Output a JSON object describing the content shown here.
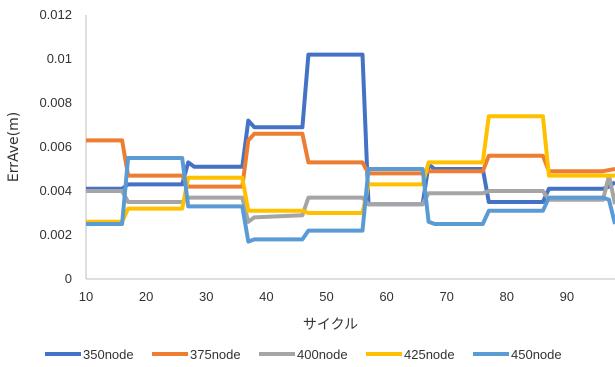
{
  "chart_data": {
    "type": "line",
    "title": "",
    "xlabel": "サイクル",
    "ylabel": "ErrAve(m)",
    "xlim": [
      10,
      98
    ],
    "ylim": [
      0,
      0.012
    ],
    "x_ticks": [
      10,
      20,
      30,
      40,
      50,
      60,
      70,
      80,
      90
    ],
    "x_tick_labels": [
      "10",
      "20",
      "30",
      "40",
      "50",
      "60",
      "70",
      "80",
      "90"
    ],
    "y_ticks": [
      0,
      0.002,
      0.004,
      0.006,
      0.008,
      0.01,
      0.012
    ],
    "y_tick_labels": [
      "0",
      "0.002",
      "0.004",
      "0.006",
      "0.008",
      "0.01",
      "0.012"
    ],
    "grid": false,
    "legend_position": "bottom",
    "series": [
      {
        "name": "350node",
        "color": "#4472C4",
        "points": [
          [
            10,
            0.0041
          ],
          [
            16,
            0.0041
          ],
          [
            17,
            0.0043
          ],
          [
            26,
            0.0043
          ],
          [
            27,
            0.0053
          ],
          [
            28,
            0.0051
          ],
          [
            36,
            0.0051
          ],
          [
            37,
            0.0072
          ],
          [
            38,
            0.0069
          ],
          [
            46,
            0.0069
          ],
          [
            47,
            0.0102
          ],
          [
            56,
            0.0102
          ],
          [
            57,
            0.0034
          ],
          [
            66,
            0.0034
          ],
          [
            67,
            0.0052
          ],
          [
            68,
            0.005
          ],
          [
            76,
            0.005
          ],
          [
            77,
            0.0035
          ],
          [
            86,
            0.0035
          ],
          [
            87,
            0.0041
          ],
          [
            96,
            0.0041
          ],
          [
            97,
            0.0042
          ],
          [
            98,
            0.0044
          ]
        ]
      },
      {
        "name": "375node",
        "color": "#ED7D31",
        "points": [
          [
            10,
            0.0063
          ],
          [
            16,
            0.0063
          ],
          [
            17,
            0.0047
          ],
          [
            26,
            0.0047
          ],
          [
            27,
            0.0042
          ],
          [
            36,
            0.0042
          ],
          [
            37,
            0.0063
          ],
          [
            38,
            0.0066
          ],
          [
            46,
            0.0066
          ],
          [
            47,
            0.0053
          ],
          [
            56,
            0.0053
          ],
          [
            57,
            0.0048
          ],
          [
            66,
            0.0048
          ],
          [
            67,
            0.0049
          ],
          [
            76,
            0.0049
          ],
          [
            77,
            0.0056
          ],
          [
            86,
            0.0056
          ],
          [
            87,
            0.0049
          ],
          [
            96,
            0.0049
          ],
          [
            98,
            0.005
          ]
        ]
      },
      {
        "name": "400node",
        "color": "#A5A5A5",
        "points": [
          [
            10,
            0.004
          ],
          [
            16,
            0.004
          ],
          [
            17,
            0.0035
          ],
          [
            26,
            0.0035
          ],
          [
            27,
            0.0037
          ],
          [
            36,
            0.0037
          ],
          [
            37,
            0.0026
          ],
          [
            38,
            0.0028
          ],
          [
            46,
            0.0029
          ],
          [
            47,
            0.0037
          ],
          [
            56,
            0.0037
          ],
          [
            57,
            0.0034
          ],
          [
            66,
            0.0034
          ],
          [
            67,
            0.0039
          ],
          [
            76,
            0.0039
          ],
          [
            77,
            0.004
          ],
          [
            86,
            0.004
          ],
          [
            87,
            0.0036
          ],
          [
            96,
            0.0036
          ],
          [
            97,
            0.0047
          ],
          [
            98,
            0.0034
          ]
        ]
      },
      {
        "name": "425node",
        "color": "#FFC000",
        "points": [
          [
            10,
            0.0026
          ],
          [
            16,
            0.0026
          ],
          [
            17,
            0.0032
          ],
          [
            26,
            0.0032
          ],
          [
            27,
            0.0046
          ],
          [
            36,
            0.0046
          ],
          [
            37,
            0.0031
          ],
          [
            46,
            0.0031
          ],
          [
            47,
            0.003
          ],
          [
            56,
            0.003
          ],
          [
            57,
            0.0043
          ],
          [
            66,
            0.0043
          ],
          [
            67,
            0.0053
          ],
          [
            76,
            0.0053
          ],
          [
            77,
            0.0074
          ],
          [
            86,
            0.0074
          ],
          [
            87,
            0.0047
          ],
          [
            96,
            0.0047
          ],
          [
            98,
            0.0047
          ]
        ]
      },
      {
        "name": "450node",
        "color": "#5B9BD5",
        "points": [
          [
            10,
            0.0025
          ],
          [
            16,
            0.0025
          ],
          [
            17,
            0.0055
          ],
          [
            26,
            0.0055
          ],
          [
            27,
            0.0033
          ],
          [
            36,
            0.0033
          ],
          [
            37,
            0.0017
          ],
          [
            38,
            0.0018
          ],
          [
            46,
            0.0018
          ],
          [
            47,
            0.0022
          ],
          [
            56,
            0.0022
          ],
          [
            57,
            0.005
          ],
          [
            66,
            0.005
          ],
          [
            67,
            0.0026
          ],
          [
            68,
            0.0025
          ],
          [
            76,
            0.0025
          ],
          [
            77,
            0.0031
          ],
          [
            86,
            0.0031
          ],
          [
            87,
            0.0037
          ],
          [
            96,
            0.0037
          ],
          [
            97,
            0.0036
          ],
          [
            98,
            0.0025
          ]
        ]
      }
    ]
  }
}
